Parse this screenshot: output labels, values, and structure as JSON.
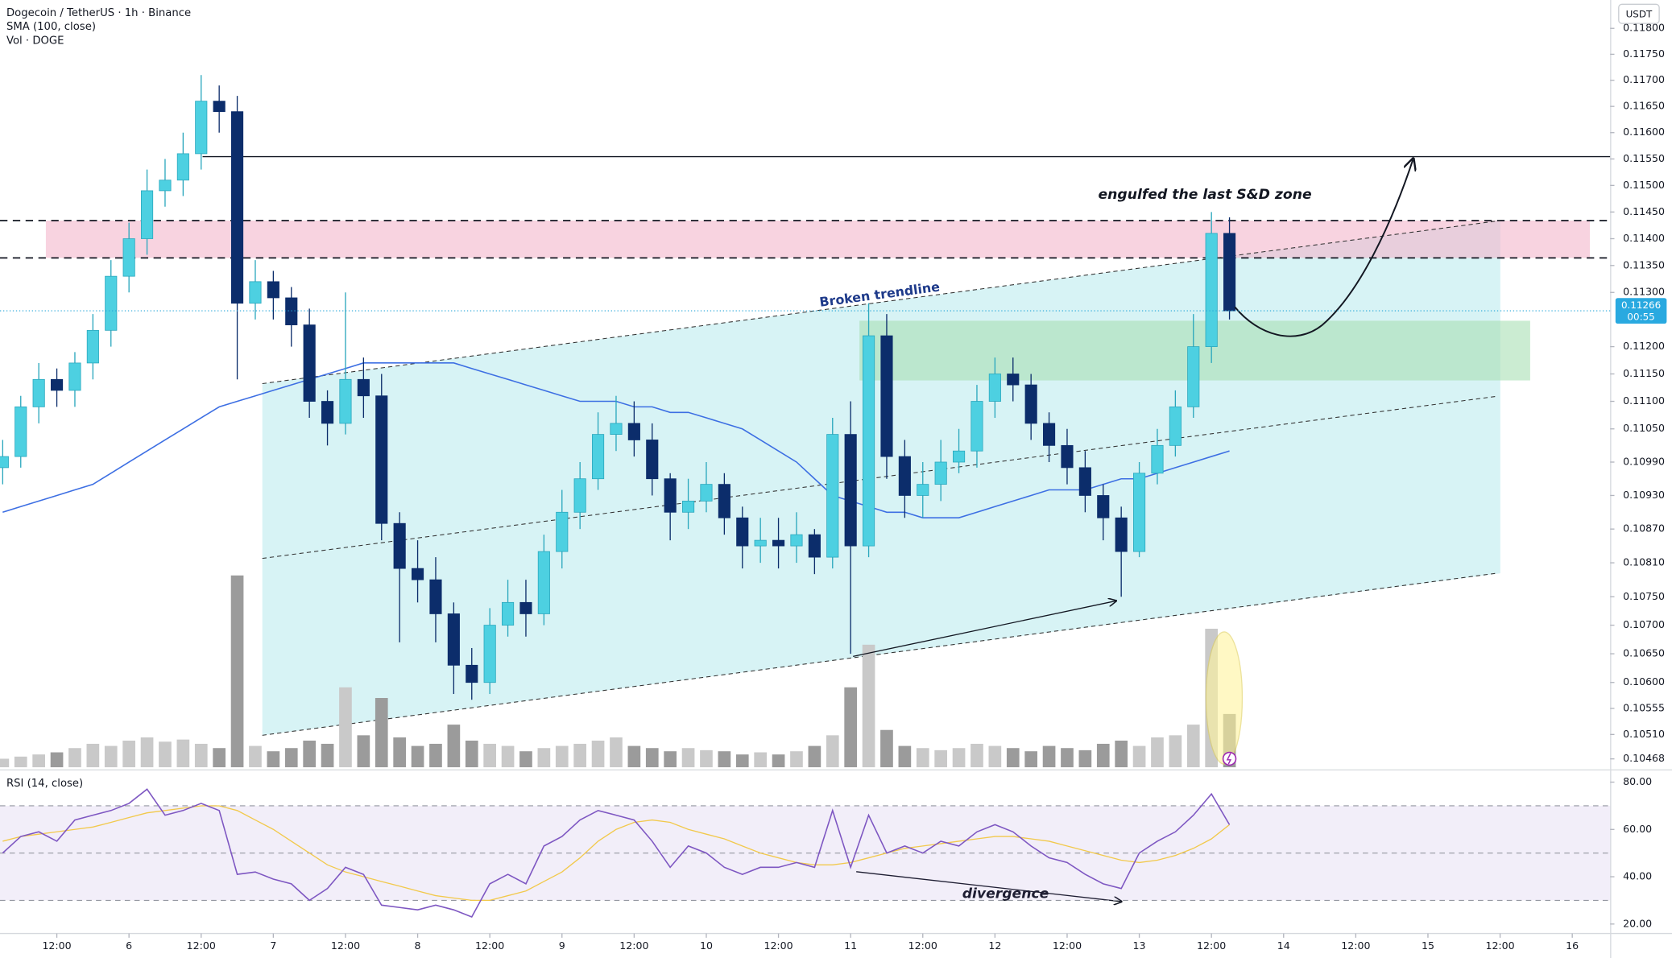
{
  "chart_data": [
    {
      "type": "candlestick",
      "title": "Dogecoin / TetherUS · 1h · Binance",
      "currency": "USDT",
      "x": [
        -21,
        -18,
        -15,
        -12,
        -9,
        -6,
        -3,
        0,
        3,
        6,
        9,
        12,
        15,
        18,
        21,
        24,
        27,
        30,
        33,
        36,
        39,
        42,
        45,
        48,
        51,
        54,
        57,
        60,
        63,
        66,
        69,
        72,
        75,
        78,
        81,
        84,
        87,
        90,
        93,
        96,
        99,
        102,
        105,
        108,
        111,
        114,
        117,
        120,
        123,
        126,
        129,
        132,
        135,
        138,
        141,
        144,
        147,
        150,
        153,
        156,
        159,
        162,
        165,
        168,
        171,
        174,
        177,
        180,
        183
      ],
      "open": [
        0.1098,
        0.11,
        0.1109,
        0.1114,
        0.1112,
        0.1117,
        0.1123,
        0.1133,
        0.114,
        0.1149,
        0.1151,
        0.1156,
        0.1166,
        0.1164,
        0.1128,
        0.1132,
        0.1129,
        0.1124,
        0.111,
        0.1106,
        0.1114,
        0.1111,
        0.1088,
        0.108,
        0.1078,
        0.1072,
        0.1063,
        0.106,
        0.107,
        0.1074,
        0.1072,
        0.1083,
        0.109,
        0.1096,
        0.1104,
        0.1106,
        0.1103,
        0.1096,
        0.109,
        0.1092,
        0.1095,
        0.1089,
        0.1084,
        0.1085,
        0.1084,
        0.1086,
        0.1082,
        0.1104,
        0.1084,
        0.1122,
        0.11,
        0.1093,
        0.1095,
        0.1099,
        0.1101,
        0.111,
        0.1115,
        0.1113,
        0.1106,
        0.1102,
        0.1098,
        0.1093,
        0.1089,
        0.1083,
        0.1097,
        0.1102,
        0.1109,
        0.112,
        0.1141
      ],
      "high": [
        0.1103,
        0.1111,
        0.1117,
        0.1116,
        0.1119,
        0.1126,
        0.1136,
        0.1143,
        0.1153,
        0.1155,
        0.116,
        0.1171,
        0.1169,
        0.1167,
        0.1136,
        0.1134,
        0.1131,
        0.1127,
        0.1112,
        0.113,
        0.1118,
        0.1115,
        0.109,
        0.1085,
        0.1082,
        0.1074,
        0.1066,
        0.1073,
        0.1078,
        0.1078,
        0.1086,
        0.1094,
        0.1099,
        0.1108,
        0.1111,
        0.111,
        0.1106,
        0.1097,
        0.1096,
        0.1099,
        0.1097,
        0.1091,
        0.1089,
        0.1089,
        0.109,
        0.1087,
        0.1107,
        0.111,
        0.1128,
        0.1126,
        0.1103,
        0.1099,
        0.1103,
        0.1105,
        0.1113,
        0.1118,
        0.1118,
        0.1115,
        0.1108,
        0.1105,
        0.1101,
        0.1095,
        0.1091,
        0.1099,
        0.1105,
        0.1112,
        0.1126,
        0.1145,
        0.1144
      ],
      "low": [
        0.1095,
        0.1098,
        0.1106,
        0.1109,
        0.1109,
        0.1114,
        0.112,
        0.113,
        0.1137,
        0.1146,
        0.1148,
        0.1153,
        0.116,
        0.1114,
        0.1125,
        0.1125,
        0.112,
        0.1107,
        0.1102,
        0.1104,
        0.1107,
        0.1085,
        0.1067,
        0.1074,
        0.1067,
        0.1058,
        0.1057,
        0.1058,
        0.1068,
        0.1068,
        0.107,
        0.108,
        0.1087,
        0.1094,
        0.1101,
        0.11,
        0.1093,
        0.1085,
        0.1087,
        0.109,
        0.1086,
        0.108,
        0.1081,
        0.108,
        0.1081,
        0.1079,
        0.108,
        0.1065,
        0.1082,
        0.1096,
        0.1089,
        0.1089,
        0.1092,
        0.1097,
        0.1098,
        0.1107,
        0.111,
        0.1103,
        0.1099,
        0.1095,
        0.109,
        0.1085,
        0.1075,
        0.1082,
        0.1095,
        0.11,
        0.1107,
        0.1117,
        0.1125
      ],
      "close": [
        0.11,
        0.1109,
        0.1114,
        0.1112,
        0.1117,
        0.1123,
        0.1133,
        0.114,
        0.1149,
        0.1151,
        0.1156,
        0.1166,
        0.1164,
        0.1128,
        0.1132,
        0.1129,
        0.1124,
        0.111,
        0.1106,
        0.1114,
        0.1111,
        0.1088,
        0.108,
        0.1078,
        0.1072,
        0.1063,
        0.106,
        0.107,
        0.1074,
        0.1072,
        0.1083,
        0.109,
        0.1096,
        0.1104,
        0.1106,
        0.1103,
        0.1096,
        0.109,
        0.1092,
        0.1095,
        0.1089,
        0.1084,
        0.1085,
        0.1084,
        0.1086,
        0.1082,
        0.1104,
        0.1084,
        0.1122,
        0.11,
        0.1093,
        0.1095,
        0.1099,
        0.1101,
        0.111,
        0.1115,
        0.1113,
        0.1106,
        0.1102,
        0.1098,
        0.1093,
        0.1089,
        0.1083,
        0.1097,
        0.1102,
        0.1109,
        0.112,
        0.1141,
        0.11266
      ],
      "up_color": "#4dd0e1",
      "down_color": "#0c2d6b",
      "series": [
        {
          "name": "SMA (100, close)",
          "color": "#3d6fe3",
          "values": [
            0.109,
            0.1091,
            0.1092,
            0.1093,
            0.1094,
            0.1095,
            0.1097,
            0.1099,
            0.1101,
            0.1103,
            0.1105,
            0.1107,
            0.1109,
            0.111,
            0.1111,
            0.1112,
            0.1113,
            0.1114,
            0.1115,
            0.1116,
            0.1117,
            0.1117,
            0.1117,
            0.1117,
            0.1117,
            0.1117,
            0.1116,
            0.1115,
            0.1114,
            0.1113,
            0.1112,
            0.1111,
            0.111,
            0.111,
            0.111,
            0.1109,
            0.1109,
            0.1108,
            0.1108,
            0.1107,
            0.1106,
            0.1105,
            0.1103,
            0.1101,
            0.1099,
            0.1096,
            0.1093,
            0.1092,
            0.1091,
            0.109,
            0.109,
            0.1089,
            0.1089,
            0.1089,
            0.109,
            0.1091,
            0.1092,
            0.1093,
            0.1094,
            0.1094,
            0.1094,
            0.1095,
            0.1096,
            0.1096,
            0.1097,
            0.1098,
            0.1099,
            0.11,
            0.1101
          ]
        }
      ],
      "volume": {
        "name": "Vol · DOGE",
        "up_color": "#c9c9c9",
        "down_color": "#9b9b9b",
        "values": [
          8,
          10,
          12,
          14,
          18,
          22,
          20,
          25,
          28,
          24,
          26,
          22,
          18,
          180,
          20,
          15,
          18,
          25,
          22,
          75,
          30,
          65,
          28,
          20,
          22,
          40,
          25,
          22,
          20,
          15,
          18,
          20,
          22,
          25,
          28,
          20,
          18,
          15,
          18,
          16,
          15,
          12,
          14,
          12,
          15,
          20,
          30,
          75,
          115,
          35,
          20,
          18,
          16,
          18,
          22,
          20,
          18,
          15,
          20,
          18,
          16,
          22,
          25,
          20,
          28,
          30,
          40,
          130,
          50
        ]
      },
      "log_scale": true,
      "grid": false,
      "ylim": [
        0.1045,
        0.11855
      ],
      "yticks": [
        {
          "value": 0.118,
          "label": "0.11800"
        },
        {
          "value": 0.1175,
          "label": "0.11750"
        },
        {
          "value": 0.117,
          "label": "0.11700"
        },
        {
          "value": 0.1165,
          "label": "0.11650"
        },
        {
          "value": 0.116,
          "label": "0.11600"
        },
        {
          "value": 0.1155,
          "label": "0.11550"
        },
        {
          "value": 0.115,
          "label": "0.11500"
        },
        {
          "value": 0.1145,
          "label": "0.11450"
        },
        {
          "value": 0.114,
          "label": "0.11400"
        },
        {
          "value": 0.1135,
          "label": "0.11350"
        },
        {
          "value": 0.113,
          "label": "0.11300"
        },
        {
          "value": 0.112,
          "label": "0.11200"
        },
        {
          "value": 0.1115,
          "label": "0.11150"
        },
        {
          "value": 0.111,
          "label": "0.11100"
        },
        {
          "value": 0.1105,
          "label": "0.11050"
        },
        {
          "value": 0.1099,
          "label": "0.10990"
        },
        {
          "value": 0.1093,
          "label": "0.10930"
        },
        {
          "value": 0.1087,
          "label": "0.10870"
        },
        {
          "value": 0.1081,
          "label": "0.10810"
        },
        {
          "value": 0.1075,
          "label": "0.10750"
        },
        {
          "value": 0.107,
          "label": "0.10700"
        },
        {
          "value": 0.1065,
          "label": "0.10650"
        },
        {
          "value": 0.106,
          "label": "0.10600"
        },
        {
          "value": 0.10555,
          "label": "0.10555"
        },
        {
          "value": 0.1051,
          "label": "0.10510"
        },
        {
          "value": 0.10468,
          "label": "0.10468"
        }
      ],
      "xlim": [
        -21.45,
        246.3
      ],
      "xticks": [
        {
          "value": -12,
          "label": "12:00"
        },
        {
          "value": 0,
          "label": "6"
        },
        {
          "value": 12,
          "label": "12:00"
        },
        {
          "value": 24,
          "label": "7"
        },
        {
          "value": 36,
          "label": "12:00"
        },
        {
          "value": 48,
          "label": "8"
        },
        {
          "value": 60,
          "label": "12:00"
        },
        {
          "value": 72,
          "label": "9"
        },
        {
          "value": 84,
          "label": "12:00"
        },
        {
          "value": 96,
          "label": "10"
        },
        {
          "value": 108,
          "label": "12:00"
        },
        {
          "value": 120,
          "label": "11"
        },
        {
          "value": 132,
          "label": "12:00"
        },
        {
          "value": 144,
          "label": "12"
        },
        {
          "value": 156,
          "label": "12:00"
        },
        {
          "value": 168,
          "label": "13"
        },
        {
          "value": 180,
          "label": "12:00"
        },
        {
          "value": 192,
          "label": "14"
        },
        {
          "value": 204,
          "label": "12:00"
        },
        {
          "value": 216,
          "label": "15"
        },
        {
          "value": 228,
          "label": "12:00"
        },
        {
          "value": 240,
          "label": "16"
        }
      ],
      "last_price_label": "0.11266",
      "countdown": "00:55",
      "annotations": [
        "engulfed the last S&D zone",
        "Broken trendline"
      ]
    },
    {
      "type": "line",
      "title": "RSI (14, close)",
      "rsi": {
        "color": "#7e57c2",
        "values": [
          50,
          57,
          59,
          55,
          64,
          66,
          68,
          71,
          77,
          66,
          68,
          71,
          68,
          41,
          42,
          39,
          37,
          30,
          35,
          44,
          41,
          28,
          27,
          26,
          28,
          26,
          23,
          37,
          41,
          37,
          53,
          57,
          64,
          68,
          66,
          64,
          55,
          44,
          53,
          50,
          44,
          41,
          44,
          44,
          46,
          44,
          68,
          44,
          66,
          50,
          53,
          50,
          55,
          53,
          59,
          62,
          59,
          53,
          48,
          46,
          41,
          37,
          35,
          50,
          55,
          59,
          66,
          75,
          62
        ]
      },
      "ma": {
        "color": "#f2c94c",
        "values": [
          55,
          57,
          58,
          59,
          60,
          61,
          63,
          65,
          67,
          68,
          69,
          70,
          70,
          68,
          64,
          60,
          55,
          50,
          45,
          42,
          40,
          38,
          36,
          34,
          32,
          31,
          30,
          30,
          32,
          34,
          38,
          42,
          48,
          55,
          60,
          63,
          64,
          63,
          60,
          58,
          56,
          53,
          50,
          48,
          46,
          45,
          45,
          46,
          48,
          50,
          52,
          53,
          54,
          55,
          56,
          57,
          57,
          56,
          55,
          53,
          51,
          49,
          47,
          46,
          47,
          49,
          52,
          56,
          62
        ]
      },
      "levels": [
        70,
        50,
        30
      ],
      "ylim": [
        16,
        83
      ],
      "yticks": [
        {
          "value": 80,
          "label": "80.00"
        },
        {
          "value": 60,
          "label": "60.00"
        },
        {
          "value": 40,
          "label": "40.00"
        },
        {
          "value": 20,
          "label": "20.00"
        }
      ],
      "annotations": [
        "divergence"
      ]
    }
  ]
}
